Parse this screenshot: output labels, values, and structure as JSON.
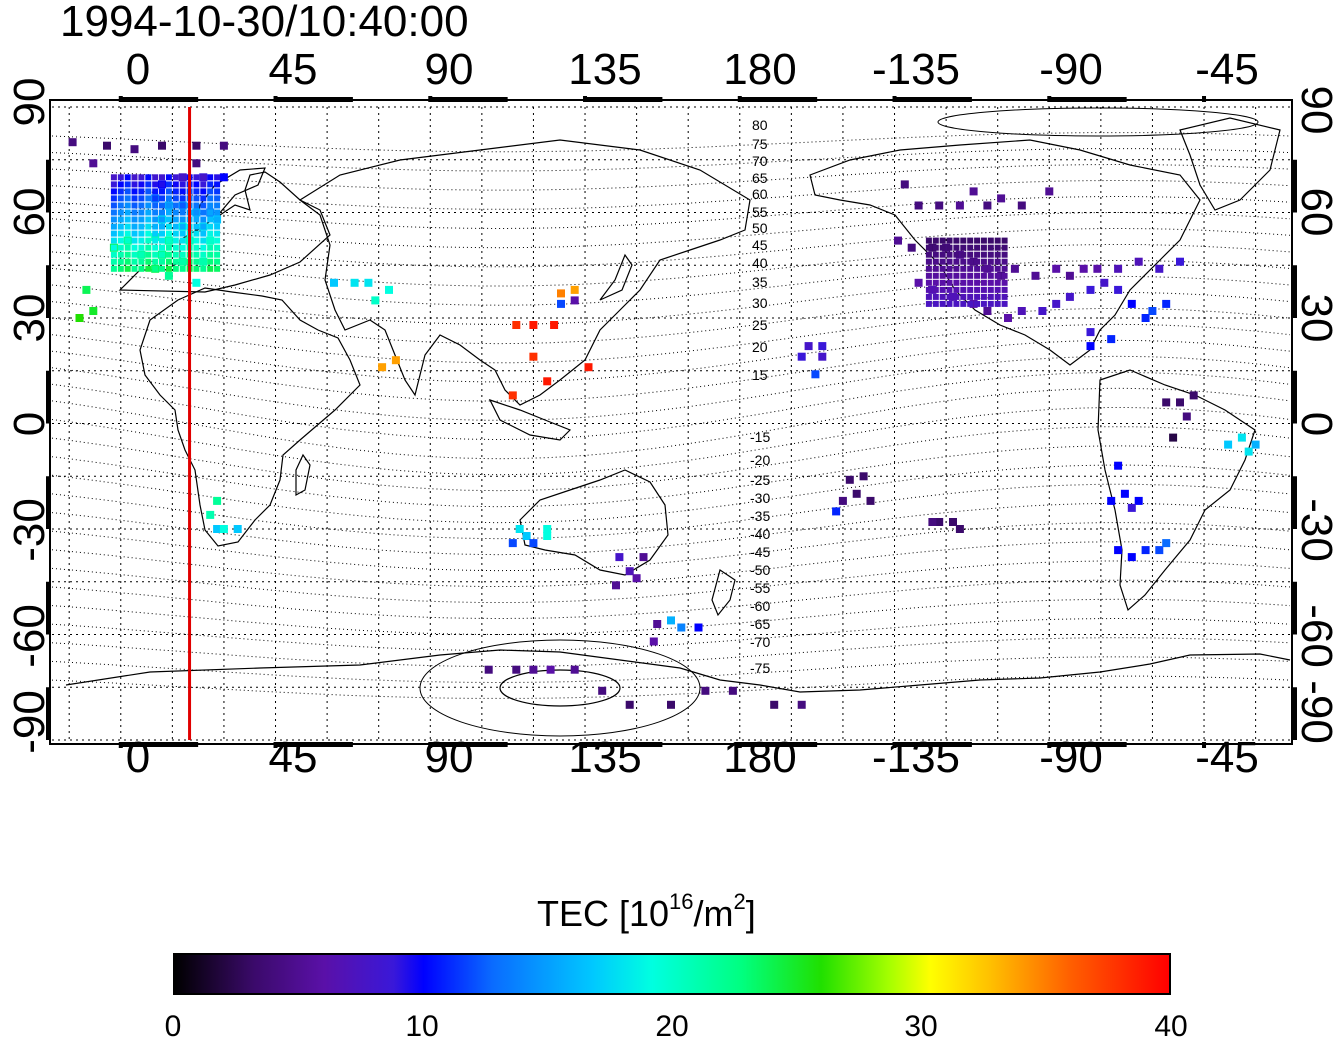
{
  "title": "1994-10-30/10:40:00",
  "axes": {
    "top_x_labels": [
      "0",
      "45",
      "90",
      "135",
      "180",
      "-135",
      "-90",
      "-45"
    ],
    "bottom_x_labels": [
      "0",
      "45",
      "90",
      "135",
      "180",
      "-135",
      "-90",
      "-45"
    ],
    "left_y_labels": [
      "90",
      "60",
      "30",
      "0",
      "-30",
      "-60",
      "-90"
    ],
    "right_y_labels": [
      "90",
      "60",
      "30",
      "0",
      "-30",
      "-60",
      "-90"
    ]
  },
  "contour_labels": {
    "north": [
      "80",
      "75",
      "70",
      "65",
      "60",
      "55",
      "50",
      "45",
      "40",
      "35",
      "30",
      "25",
      "20",
      "15"
    ],
    "south": [
      "-15",
      "-20",
      "-25",
      "-30",
      "-35",
      "-40",
      "-45",
      "-50",
      "-55",
      "-60",
      "-65",
      "-70",
      "-75"
    ]
  },
  "colorbar": {
    "title_prefix": "TEC  [10",
    "title_sup1": "16",
    "title_mid": "/m",
    "title_sup2": "2",
    "title_suffix": "]",
    "ticks": [
      "0",
      "10",
      "20",
      "30",
      "40"
    ],
    "range": [
      0,
      40
    ]
  },
  "colors": {
    "marker_line": "#e00000",
    "grid": "#000000"
  },
  "map": {
    "longitude_range": [
      -20,
      340
    ],
    "latitude_range": [
      -90,
      90
    ],
    "marker_longitude": 20
  }
}
